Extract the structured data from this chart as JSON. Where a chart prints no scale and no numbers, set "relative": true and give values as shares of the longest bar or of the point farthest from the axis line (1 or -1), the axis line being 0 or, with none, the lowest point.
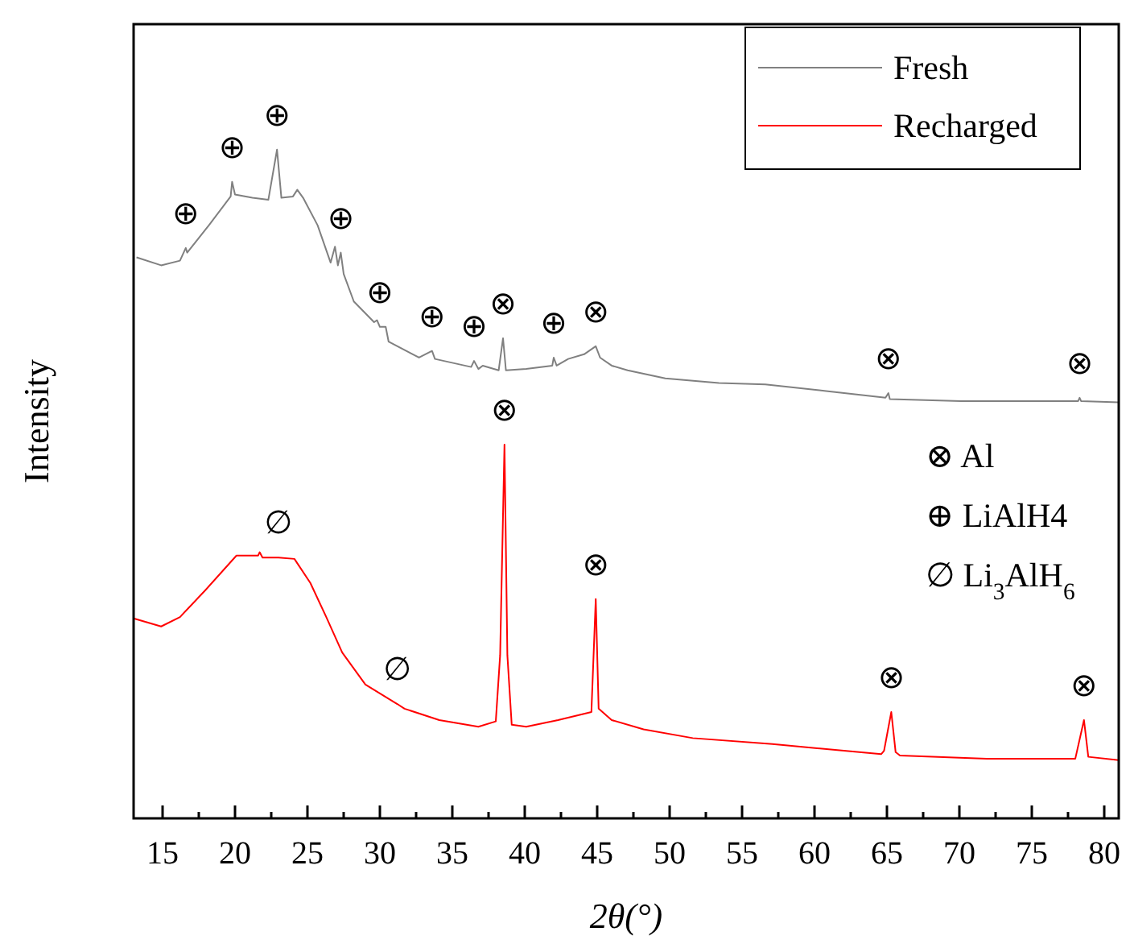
{
  "chart_data": {
    "type": "line",
    "relative": true,
    "xlabel": "2θ(°)",
    "ylabel": "Intensity",
    "xlim": [
      13,
      81
    ],
    "xticks": [
      15,
      {
        "value": 17.5,
        "label": null
      },
      20,
      {
        "value": 22.5,
        "label": null
      },
      25,
      {
        "value": 27.5,
        "label": null
      },
      30,
      {
        "value": 32.5,
        "label": null
      },
      35,
      {
        "value": 37.5,
        "label": null
      },
      40,
      {
        "value": 42.5,
        "label": null
      },
      45,
      {
        "value": 47.5,
        "label": null
      },
      50,
      {
        "value": 52.5,
        "label": null
      },
      55,
      {
        "value": 57.5,
        "label": null
      },
      60,
      {
        "value": 62.5,
        "label": null
      },
      65,
      {
        "value": 67.5,
        "label": null
      },
      70,
      {
        "value": 72.5,
        "label": null
      },
      75,
      {
        "value": 77.5,
        "label": null
      },
      80
    ],
    "tick_labels": "x",
    "grid": false,
    "legend": "top right",
    "line_style": "solid",
    "marker": "none",
    "series": [
      {
        "name": "Fresh",
        "color": "#808080",
        "x": [
          13.2,
          14.9,
          16.2,
          16.6,
          16.7,
          18.2,
          19.7,
          19.8,
          20.0,
          21.2,
          22.3,
          22.9,
          23.2,
          24.0,
          24.3,
          24.7,
          25.7,
          26.6,
          26.9,
          27.1,
          27.3,
          27.5,
          28.2,
          29.6,
          29.8,
          30.0,
          30.4,
          30.6,
          32.7,
          33.6,
          33.8,
          36.3,
          36.5,
          36.8,
          37.1,
          38.2,
          38.5,
          38.7,
          40.1,
          41.9,
          42.0,
          42.2,
          43.0,
          44.1,
          44.9,
          45.2,
          46.0,
          47.1,
          49.7,
          53.4,
          56.6,
          60.8,
          64.9,
          65.1,
          65.2,
          70.1,
          78.2,
          78.3,
          78.4,
          81
        ],
        "values": [
          0.839,
          0.827,
          0.834,
          0.853,
          0.846,
          0.887,
          0.93,
          0.952,
          0.933,
          0.928,
          0.925,
          1.0,
          0.928,
          0.93,
          0.94,
          0.928,
          0.887,
          0.831,
          0.855,
          0.827,
          0.846,
          0.814,
          0.773,
          0.742,
          0.745,
          0.735,
          0.735,
          0.713,
          0.689,
          0.699,
          0.687,
          0.675,
          0.684,
          0.672,
          0.677,
          0.67,
          0.718,
          0.67,
          0.672,
          0.677,
          0.689,
          0.677,
          0.687,
          0.694,
          0.706,
          0.689,
          0.677,
          0.67,
          0.658,
          0.651,
          0.649,
          0.639,
          0.629,
          0.636,
          0.627,
          0.624,
          0.624,
          0.629,
          0.624,
          0.622
        ]
      },
      {
        "name": "Recharged",
        "color": "#ff0000",
        "x": [
          13.0,
          14.9,
          16.2,
          17.9,
          20.1,
          21.6,
          21.7,
          21.9,
          23.0,
          24.1,
          25.2,
          26.3,
          27.4,
          29.0,
          31.2,
          31.7,
          34.1,
          36.8,
          38.0,
          38.3,
          38.6,
          38.8,
          39.1,
          40.1,
          42.3,
          44.6,
          44.9,
          45.1,
          46.0,
          48.2,
          51.6,
          57.1,
          64.6,
          64.8,
          65.3,
          65.6,
          65.9,
          71.9,
          78.0,
          78.6,
          78.9,
          81
        ],
        "values": [
          0.299,
          0.287,
          0.301,
          0.34,
          0.393,
          0.393,
          0.398,
          0.39,
          0.39,
          0.388,
          0.352,
          0.301,
          0.248,
          0.2,
          0.171,
          0.164,
          0.147,
          0.137,
          0.145,
          0.244,
          0.559,
          0.244,
          0.14,
          0.137,
          0.147,
          0.159,
          0.328,
          0.164,
          0.147,
          0.133,
          0.12,
          0.111,
          0.096,
          0.101,
          0.159,
          0.099,
          0.094,
          0.089,
          0.089,
          0.147,
          0.092,
          0.087
        ]
      }
    ],
    "annotations": [
      {
        "text": "⊕",
        "x": 16.6,
        "y": 0.853
      },
      {
        "text": "⊕",
        "x": 19.8,
        "y": 0.952
      },
      {
        "text": "⊕",
        "x": 22.9,
        "y": 1.0
      },
      {
        "text": "⊕",
        "x": 27.3,
        "y": 0.846
      },
      {
        "text": "⊕",
        "x": 30.0,
        "y": 0.735
      },
      {
        "text": "⊕",
        "x": 33.6,
        "y": 0.699
      },
      {
        "text": "⊕",
        "x": 36.5,
        "y": 0.684
      },
      {
        "text": "⊗",
        "x": 38.5,
        "y": 0.718
      },
      {
        "text": "⊕",
        "x": 42.0,
        "y": 0.689
      },
      {
        "text": "⊗",
        "x": 44.9,
        "y": 0.706
      },
      {
        "text": "⊗",
        "x": 65.1,
        "y": 0.636
      },
      {
        "text": "⊗",
        "x": 78.3,
        "y": 0.629
      },
      {
        "text": "⊗",
        "x": 38.6,
        "y": 0.559
      },
      {
        "text": "∅",
        "x": 23.0,
        "y": 0.39
      },
      {
        "text": "∅",
        "x": 31.2,
        "y": 0.171
      },
      {
        "text": "⊗",
        "x": 44.9,
        "y": 0.328
      },
      {
        "text": "⊗",
        "x": 65.3,
        "y": 0.159
      },
      {
        "text": "⊗",
        "x": 78.6,
        "y": 0.147
      },
      "⊗ Al",
      "⊕ LiAlH4",
      "∅ Li$_{3}$AlH$_{6}$"
    ]
  }
}
